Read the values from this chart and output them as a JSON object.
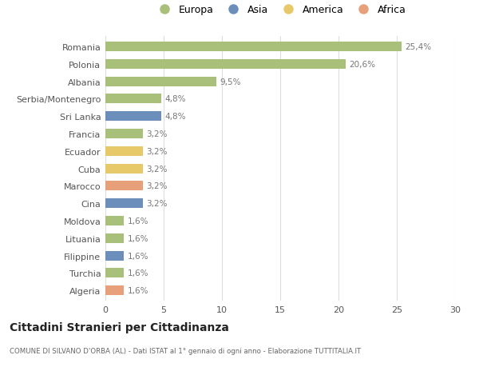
{
  "categories": [
    "Romania",
    "Polonia",
    "Albania",
    "Serbia/Montenegro",
    "Sri Lanka",
    "Francia",
    "Ecuador",
    "Cuba",
    "Marocco",
    "Cina",
    "Moldova",
    "Lituania",
    "Filippine",
    "Turchia",
    "Algeria"
  ],
  "values": [
    25.4,
    20.6,
    9.5,
    4.8,
    4.8,
    3.2,
    3.2,
    3.2,
    3.2,
    3.2,
    1.6,
    1.6,
    1.6,
    1.6,
    1.6
  ],
  "labels": [
    "25,4%",
    "20,6%",
    "9,5%",
    "4,8%",
    "4,8%",
    "3,2%",
    "3,2%",
    "3,2%",
    "3,2%",
    "3,2%",
    "1,6%",
    "1,6%",
    "1,6%",
    "1,6%",
    "1,6%"
  ],
  "continent": [
    "Europa",
    "Europa",
    "Europa",
    "Europa",
    "Asia",
    "Europa",
    "America",
    "America",
    "Africa",
    "Asia",
    "Europa",
    "Europa",
    "Asia",
    "Europa",
    "Africa"
  ],
  "colors": {
    "Europa": "#a8c07a",
    "Asia": "#6b8fba",
    "America": "#e8c96a",
    "Africa": "#e8a07a"
  },
  "legend_order": [
    "Europa",
    "Asia",
    "America",
    "Africa"
  ],
  "xlim": [
    0,
    30
  ],
  "xticks": [
    0,
    5,
    10,
    15,
    20,
    25,
    30
  ],
  "title": "Cittadini Stranieri per Cittadinanza",
  "subtitle": "COMUNE DI SILVANO D'ORBA (AL) - Dati ISTAT al 1° gennaio di ogni anno - Elaborazione TUTTITALIA.IT",
  "bg_color": "#ffffff",
  "grid_color": "#dddddd",
  "bar_height": 0.55,
  "label_color": "#777777",
  "text_color": "#555555"
}
